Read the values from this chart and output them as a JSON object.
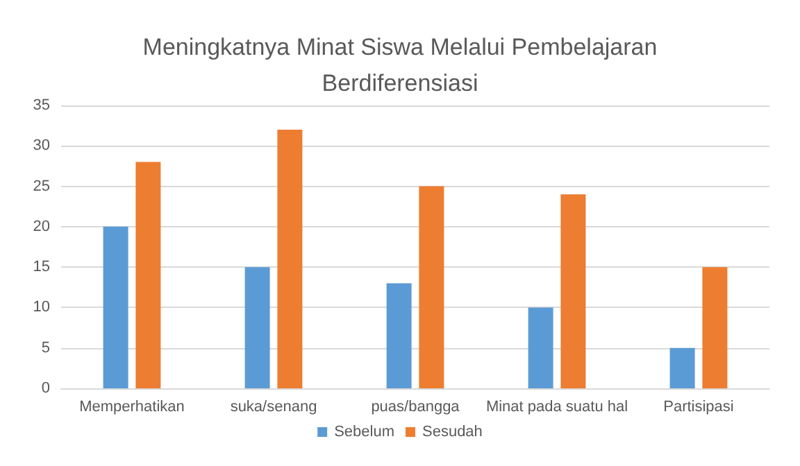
{
  "chart_data": {
    "type": "bar",
    "title": "Meningkatnya Minat Siswa Melalui Pembelajaran\nBerdiferensiasi",
    "categories": [
      "Memperhatikan",
      "suka/senang",
      "puas/bangga",
      "Minat pada suatu hal",
      "Partisipasi"
    ],
    "series": [
      {
        "name": "Sebelum",
        "color": "#5b9bd5",
        "values": [
          20,
          15,
          13,
          10,
          5
        ]
      },
      {
        "name": "Sesudah",
        "color": "#ed7d31",
        "values": [
          28,
          32,
          25,
          24,
          15
        ]
      }
    ],
    "ylim": [
      0,
      35
    ],
    "yticks": [
      0,
      5,
      10,
      15,
      20,
      25,
      30,
      35
    ],
    "grid": "y",
    "legend": "bottom"
  }
}
